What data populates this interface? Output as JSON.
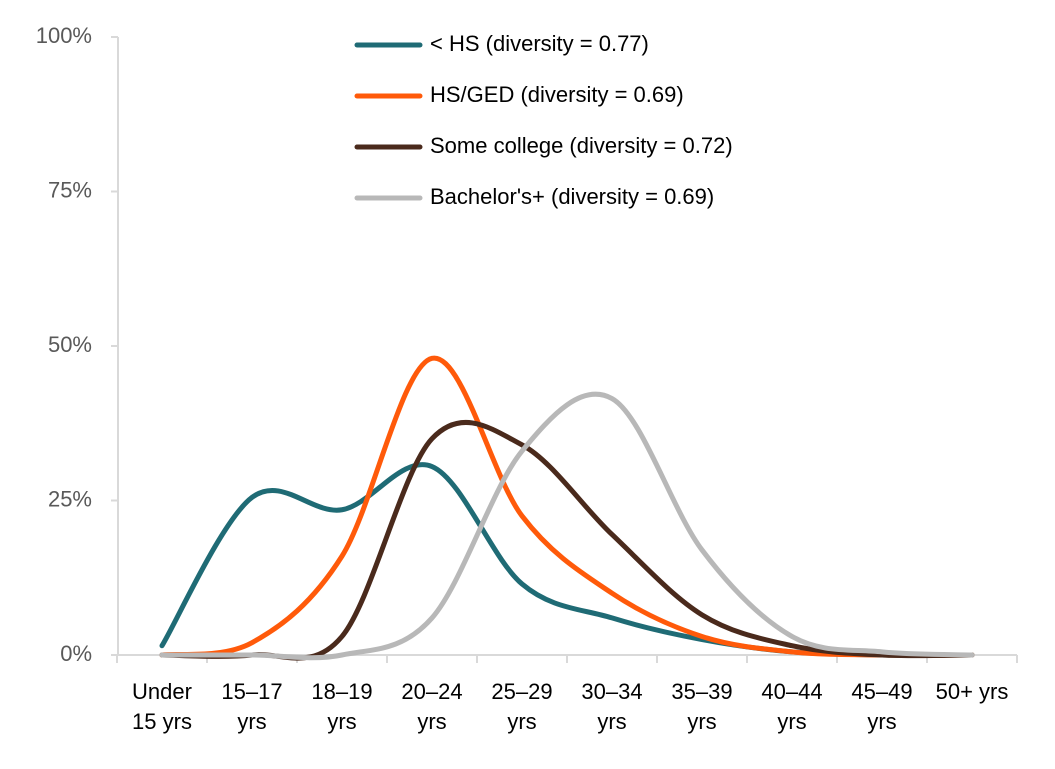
{
  "chart_data": {
    "type": "line",
    "categories": [
      "Under 15 yrs",
      "15–17 yrs",
      "18–19 yrs",
      "20–24 yrs",
      "25–29 yrs",
      "30–34 yrs",
      "35–39 yrs",
      "40–44 yrs",
      "45–49 yrs",
      "50+ yrs"
    ],
    "series": [
      {
        "name": "< HS (diversity = 0.77)",
        "color": "#1f6b75",
        "values": [
          1.5,
          25.5,
          23.5,
          30.5,
          11.5,
          6,
          2.5,
          0.5,
          0,
          0
        ]
      },
      {
        "name": "HS/GED (diversity = 0.69)",
        "color": "#ff5a0a",
        "values": [
          0,
          2,
          16,
          48,
          22.5,
          10,
          3,
          0.5,
          0,
          0
        ]
      },
      {
        "name": "Some college (diversity = 0.72)",
        "color": "#4a2a1c",
        "values": [
          0,
          0,
          3,
          35,
          34,
          19.5,
          6.5,
          1.5,
          0,
          0
        ]
      },
      {
        "name": "Bachelor's+ (diversity = 0.69)",
        "color": "#b8b8b8",
        "values": [
          0,
          0,
          0,
          6,
          33,
          41.5,
          17,
          3,
          0.5,
          0
        ]
      }
    ],
    "ylim": [
      0,
      100
    ],
    "yticks": [
      {
        "value": 0,
        "label": "0%"
      },
      {
        "value": 25,
        "label": "25%"
      },
      {
        "value": 50,
        "label": "50%"
      },
      {
        "value": 75,
        "label": "75%"
      },
      {
        "value": 100,
        "label": "100%"
      }
    ],
    "legend": "top",
    "grid": false,
    "smooth": true
  }
}
